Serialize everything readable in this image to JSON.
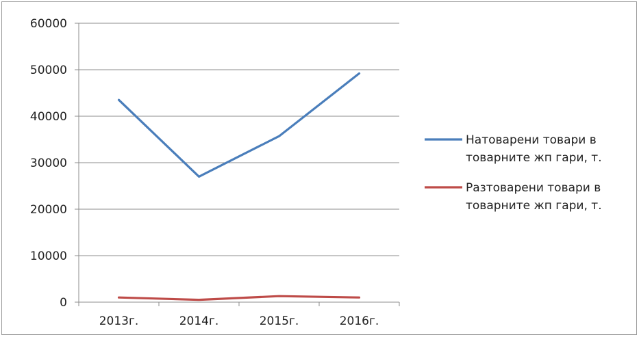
{
  "chart_data": {
    "type": "line",
    "categories": [
      "2013г.",
      "2014г.",
      "2015г.",
      "2016г."
    ],
    "series": [
      {
        "name": "Натоварени товари в товарните жп гари, т.",
        "name_lines": [
          "Натоварени товари в",
          "товарните жп гари, т."
        ],
        "color": "#4a7ebb",
        "values": [
          43500,
          27000,
          35700,
          49200
        ]
      },
      {
        "name": "Разтоварени товари в товарните жп гари, т.",
        "name_lines": [
          "Разтоварени товари в",
          "товарните жп гари, т."
        ],
        "color": "#be4b48",
        "values": [
          1000,
          500,
          1300,
          1000
        ]
      }
    ],
    "ylim": [
      0,
      60000
    ],
    "yticks": [
      "0",
      "10000",
      "20000",
      "30000",
      "40000",
      "50000",
      "60000"
    ],
    "grid": true,
    "legend_position": "right",
    "title": "",
    "xlabel": "",
    "ylabel": ""
  }
}
